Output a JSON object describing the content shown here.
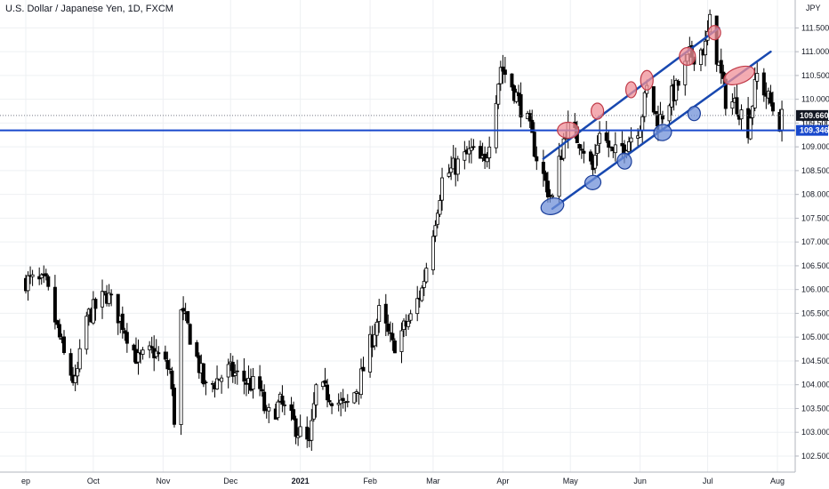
{
  "chart_data": {
    "type": "candlestick",
    "title": "U.S. Dollar / Japanese Yen, 1D, FXCM",
    "currency": "JPY",
    "ylim": [
      102.2,
      111.9
    ],
    "x_ticks": [
      {
        "label": "ep",
        "date": "2020-09-01"
      },
      {
        "label": "Oct",
        "date": "2020-10-01"
      },
      {
        "label": "Nov",
        "date": "2020-11-01"
      },
      {
        "label": "Dec",
        "date": "2020-12-01"
      },
      {
        "label": "2021",
        "date": "2021-01-01",
        "bold": true
      },
      {
        "label": "Feb",
        "date": "2021-02-01"
      },
      {
        "label": "Mar",
        "date": "2021-03-01"
      },
      {
        "label": "Apr",
        "date": "2021-04-01"
      },
      {
        "label": "May",
        "date": "2021-05-01"
      },
      {
        "label": "Jun",
        "date": "2021-06-01"
      },
      {
        "label": "Jul",
        "date": "2021-07-01"
      },
      {
        "label": "Aug",
        "date": "2021-08-01"
      }
    ],
    "y_ticks": [
      "102.500",
      "103.000",
      "103.500",
      "104.000",
      "104.500",
      "105.000",
      "105.500",
      "106.000",
      "106.500",
      "107.000",
      "107.500",
      "108.000",
      "108.500",
      "109.000",
      "109.500",
      "110.000",
      "110.500",
      "111.000",
      "111.500"
    ],
    "current_price": {
      "label": "109.660",
      "value": 109.66,
      "color": "#131722"
    },
    "horizontal_line": {
      "label": "109.346",
      "value": 109.346,
      "color": "#1848cc"
    },
    "hidden_label": "109.500",
    "close_path": [
      [
        "2020-09-01",
        106.2
      ],
      [
        "2020-09-10",
        106.1
      ],
      [
        "2020-09-18",
        104.6
      ],
      [
        "2020-09-23",
        104.0
      ],
      [
        "2020-09-28",
        105.4
      ],
      [
        "2020-10-07",
        105.9
      ],
      [
        "2020-10-14",
        105.3
      ],
      [
        "2020-10-21",
        104.5
      ],
      [
        "2020-10-28",
        104.7
      ],
      [
        "2020-11-04",
        104.3
      ],
      [
        "2020-11-06",
        103.3
      ],
      [
        "2020-11-09",
        105.5
      ],
      [
        "2020-11-12",
        105.2
      ],
      [
        "2020-11-20",
        103.9
      ],
      [
        "2020-11-30",
        104.3
      ],
      [
        "2020-12-07",
        104.1
      ],
      [
        "2020-12-14",
        103.9
      ],
      [
        "2020-12-17",
        103.3
      ],
      [
        "2020-12-23",
        103.6
      ],
      [
        "2021-01-05",
        102.7
      ],
      [
        "2021-01-08",
        103.9
      ],
      [
        "2021-01-14",
        103.8
      ],
      [
        "2021-01-21",
        103.5
      ],
      [
        "2021-01-27",
        104.0
      ],
      [
        "2021-02-05",
        105.5
      ],
      [
        "2021-02-11",
        104.8
      ],
      [
        "2021-02-19",
        105.4
      ],
      [
        "2021-02-24",
        106.0
      ],
      [
        "2021-02-26",
        106.5
      ],
      [
        "2021-03-05",
        108.3
      ],
      [
        "2021-03-11",
        108.6
      ],
      [
        "2021-03-18",
        108.9
      ],
      [
        "2021-03-24",
        108.6
      ],
      [
        "2021-03-31",
        110.7
      ],
      [
        "2021-04-05",
        110.3
      ],
      [
        "2021-04-12",
        109.5
      ],
      [
        "2021-04-16",
        108.8
      ],
      [
        "2021-04-21",
        108.1
      ],
      [
        "2021-04-23",
        107.9
      ],
      [
        "2021-04-29",
        109.4
      ],
      [
        "2021-05-06",
        109.1
      ],
      [
        "2021-05-11",
        108.5
      ],
      [
        "2021-05-14",
        109.4
      ],
      [
        "2021-05-20",
        108.8
      ],
      [
        "2021-05-26",
        109.1
      ],
      [
        "2021-06-01",
        109.5
      ],
      [
        "2021-06-04",
        110.2
      ],
      [
        "2021-06-09",
        109.5
      ],
      [
        "2021-06-14",
        110.0
      ],
      [
        "2021-06-17",
        110.2
      ],
      [
        "2021-06-23",
        110.9
      ],
      [
        "2021-06-30",
        111.1
      ],
      [
        "2021-07-02",
        111.6
      ],
      [
        "2021-07-06",
        110.7
      ],
      [
        "2021-07-09",
        110.0
      ],
      [
        "2021-07-14",
        109.9
      ],
      [
        "2021-07-19",
        109.4
      ],
      [
        "2021-07-23",
        110.5
      ],
      [
        "2021-07-28",
        110.0
      ],
      [
        "2021-08-02",
        109.5
      ],
      [
        "2021-08-03",
        109.6
      ]
    ],
    "trendlines": [
      {
        "from": {
          "date": "2021-04-19",
          "price": 108.75
        },
        "to": {
          "date": "2021-07-06",
          "price": 111.5
        },
        "color": "#1848b0"
      },
      {
        "from": {
          "date": "2021-04-23",
          "price": 107.7
        },
        "to": {
          "date": "2021-07-29",
          "price": 111.0
        },
        "color": "#1848b0"
      }
    ],
    "markers": [
      {
        "kind": "resistance",
        "date": "2021-04-30",
        "price": 109.35,
        "rx": 12,
        "ry": 9,
        "rot": 0
      },
      {
        "kind": "resistance",
        "date": "2021-05-13",
        "price": 109.75,
        "rx": 7,
        "ry": 9,
        "rot": 0
      },
      {
        "kind": "resistance",
        "date": "2021-05-28",
        "price": 110.2,
        "rx": 6,
        "ry": 9,
        "rot": 0
      },
      {
        "kind": "resistance",
        "date": "2021-06-04",
        "price": 110.4,
        "rx": 7,
        "ry": 11,
        "rot": 0
      },
      {
        "kind": "resistance",
        "date": "2021-06-22",
        "price": 110.9,
        "rx": 9,
        "ry": 10,
        "rot": 0
      },
      {
        "kind": "resistance",
        "date": "2021-07-04",
        "price": 111.4,
        "rx": 7,
        "ry": 8,
        "rot": 0
      },
      {
        "kind": "resistance",
        "date": "2021-07-15",
        "price": 110.5,
        "rx": 18,
        "ry": 9,
        "rot": -20
      },
      {
        "kind": "support",
        "date": "2021-04-23",
        "price": 107.75,
        "rx": 13,
        "ry": 9,
        "rot": -15
      },
      {
        "kind": "support",
        "date": "2021-05-11",
        "price": 108.25,
        "rx": 9,
        "ry": 8,
        "rot": -10
      },
      {
        "kind": "support",
        "date": "2021-05-25",
        "price": 108.7,
        "rx": 8,
        "ry": 9,
        "rot": -10
      },
      {
        "kind": "support",
        "date": "2021-06-11",
        "price": 109.3,
        "rx": 10,
        "ry": 9,
        "rot": -15
      },
      {
        "kind": "support",
        "date": "2021-06-25",
        "price": 109.7,
        "rx": 7,
        "ry": 8,
        "rot": 0
      }
    ],
    "marker_colors": {
      "resistance": "#f09098",
      "support": "#7090d8"
    }
  }
}
